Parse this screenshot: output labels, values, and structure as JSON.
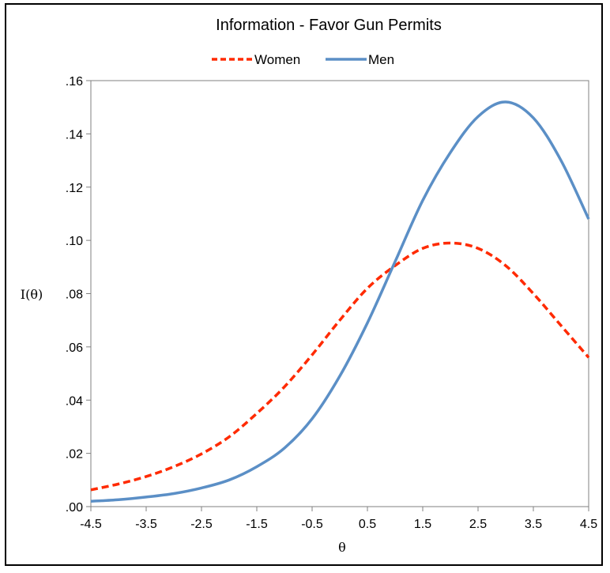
{
  "chart_data": {
    "type": "line",
    "title": "Information - Favor Gun Permits",
    "xlabel": "θ",
    "ylabel": "I(θ)",
    "xlim": [
      -4.5,
      4.5
    ],
    "ylim": [
      0,
      0.16
    ],
    "x_ticks": [
      "-4.5",
      "-3.5",
      "-2.5",
      "-1.5",
      "-0.5",
      "0.5",
      "1.5",
      "2.5",
      "3.5",
      "4.5"
    ],
    "y_ticks": [
      ".00",
      ".02",
      ".04",
      ".06",
      ".08",
      ".10",
      ".12",
      ".14",
      ".16"
    ],
    "grid": false,
    "legend_position": "top",
    "x": [
      -4.5,
      -4.0,
      -3.5,
      -3.0,
      -2.5,
      -2.0,
      -1.5,
      -1.0,
      -0.5,
      0.0,
      0.5,
      1.0,
      1.5,
      2.0,
      2.5,
      3.0,
      3.5,
      4.0,
      4.5
    ],
    "series": [
      {
        "name": "Women",
        "color": "#FF2A00",
        "style": "dashed",
        "values": [
          0.0063,
          0.0085,
          0.0113,
          0.015,
          0.0198,
          0.0262,
          0.035,
          0.045,
          0.057,
          0.07,
          0.082,
          0.0905,
          0.097,
          0.099,
          0.097,
          0.0905,
          0.08,
          0.068,
          0.056
        ]
      },
      {
        "name": "Men",
        "color": "#5B8FC6",
        "style": "solid",
        "values": [
          0.002,
          0.0026,
          0.0036,
          0.0049,
          0.007,
          0.01,
          0.015,
          0.022,
          0.033,
          0.049,
          0.069,
          0.092,
          0.115,
          0.133,
          0.1465,
          0.152,
          0.146,
          0.13,
          0.108
        ]
      }
    ]
  }
}
